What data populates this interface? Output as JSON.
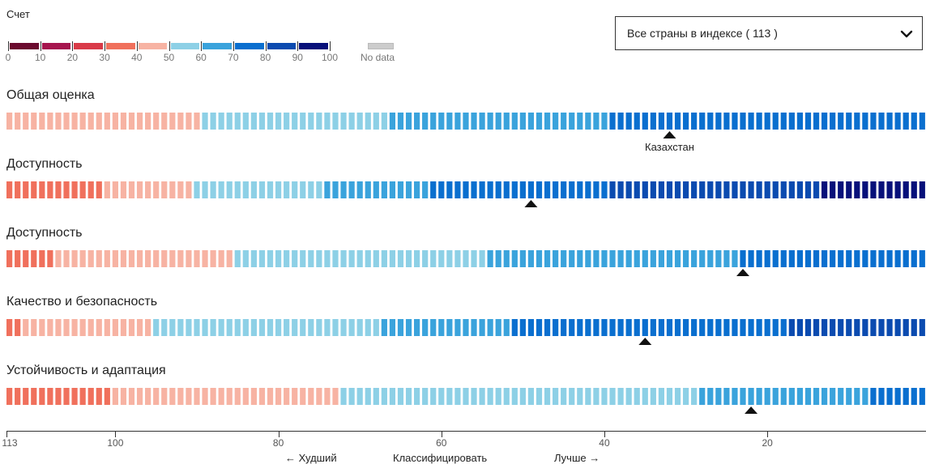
{
  "legend": {
    "title": "Счет",
    "bins": [
      {
        "from": 0,
        "to": 10,
        "color": "#6b0a2e"
      },
      {
        "from": 10,
        "to": 20,
        "color": "#a6154e"
      },
      {
        "from": 20,
        "to": 30,
        "color": "#d93a48"
      },
      {
        "from": 30,
        "to": 40,
        "color": "#f0705c"
      },
      {
        "from": 40,
        "to": 50,
        "color": "#f7b3a3"
      },
      {
        "from": 50,
        "to": 60,
        "color": "#8dd0e6"
      },
      {
        "from": 60,
        "to": 70,
        "color": "#3aa3dc"
      },
      {
        "from": 70,
        "to": 80,
        "color": "#0a6fcf"
      },
      {
        "from": 80,
        "to": 90,
        "color": "#0b4bb0"
      },
      {
        "from": 90,
        "to": 100,
        "color": "#07107a"
      }
    ],
    "tick_labels": [
      "0",
      "10",
      "20",
      "30",
      "40",
      "50",
      "60",
      "70",
      "80",
      "90",
      "100"
    ],
    "nodata_label": "No data",
    "nodata_color": "#cccccc"
  },
  "dropdown": {
    "value": "Все страны в индексе ( 113 )"
  },
  "chart_data": {
    "type": "strip-rank",
    "rank_range": [
      113,
      1
    ],
    "x_axis": {
      "ticks": [
        113,
        100,
        80,
        60,
        40,
        20
      ],
      "tick_labels": [
        "113",
        "100",
        "80",
        "60",
        "40",
        "20"
      ],
      "worse_label": "Худший",
      "sort_label": "Классифицировать",
      "better_label": "Лучше"
    },
    "rows": [
      {
        "label": "Общая оценка",
        "segments": [
          {
            "from_rank": 113,
            "to_rank": 90,
            "bin": 4
          },
          {
            "from_rank": 89,
            "to_rank": 67,
            "bin": 5
          },
          {
            "from_rank": 66,
            "to_rank": 40,
            "bin": 6
          },
          {
            "from_rank": 39,
            "to_rank": 1,
            "bin": 7
          }
        ],
        "marker_rank": 32,
        "marker_label": "Казахстан",
        "marker_label_position": "below"
      },
      {
        "label": "Доступность",
        "segments": [
          {
            "from_rank": 113,
            "to_rank": 102,
            "bin": 3
          },
          {
            "from_rank": 101,
            "to_rank": 91,
            "bin": 4
          },
          {
            "from_rank": 90,
            "to_rank": 75,
            "bin": 5
          },
          {
            "from_rank": 74,
            "to_rank": 62,
            "bin": 6
          },
          {
            "from_rank": 61,
            "to_rank": 40,
            "bin": 7
          },
          {
            "from_rank": 39,
            "to_rank": 14,
            "bin": 8
          },
          {
            "from_rank": 13,
            "to_rank": 1,
            "bin": 9
          }
        ],
        "marker_rank": 49,
        "marker_label": "",
        "marker_label_position": "none"
      },
      {
        "label": "Доступность",
        "segments": [
          {
            "from_rank": 113,
            "to_rank": 108,
            "bin": 3
          },
          {
            "from_rank": 107,
            "to_rank": 86,
            "bin": 4
          },
          {
            "from_rank": 85,
            "to_rank": 55,
            "bin": 5
          },
          {
            "from_rank": 54,
            "to_rank": 24,
            "bin": 6
          },
          {
            "from_rank": 23,
            "to_rank": 1,
            "bin": 7
          }
        ],
        "marker_rank": 23,
        "marker_label": "",
        "marker_label_position": "none"
      },
      {
        "label": "Качество и безопасность",
        "segments": [
          {
            "from_rank": 113,
            "to_rank": 112,
            "bin": 3
          },
          {
            "from_rank": 111,
            "to_rank": 96,
            "bin": 4
          },
          {
            "from_rank": 95,
            "to_rank": 68,
            "bin": 5
          },
          {
            "from_rank": 67,
            "to_rank": 52,
            "bin": 6
          },
          {
            "from_rank": 51,
            "to_rank": 18,
            "bin": 7
          },
          {
            "from_rank": 17,
            "to_rank": 1,
            "bin": 8
          }
        ],
        "marker_rank": 35,
        "marker_label": "",
        "marker_label_position": "none"
      },
      {
        "label": "Устойчивость и адаптация",
        "segments": [
          {
            "from_rank": 113,
            "to_rank": 101,
            "bin": 3
          },
          {
            "from_rank": 100,
            "to_rank": 73,
            "bin": 4
          },
          {
            "from_rank": 72,
            "to_rank": 29,
            "bin": 5
          },
          {
            "from_rank": 28,
            "to_rank": 8,
            "bin": 6
          },
          {
            "from_rank": 7,
            "to_rank": 1,
            "bin": 7
          }
        ],
        "marker_rank": 22,
        "marker_label": "",
        "marker_label_position": "none"
      }
    ]
  }
}
